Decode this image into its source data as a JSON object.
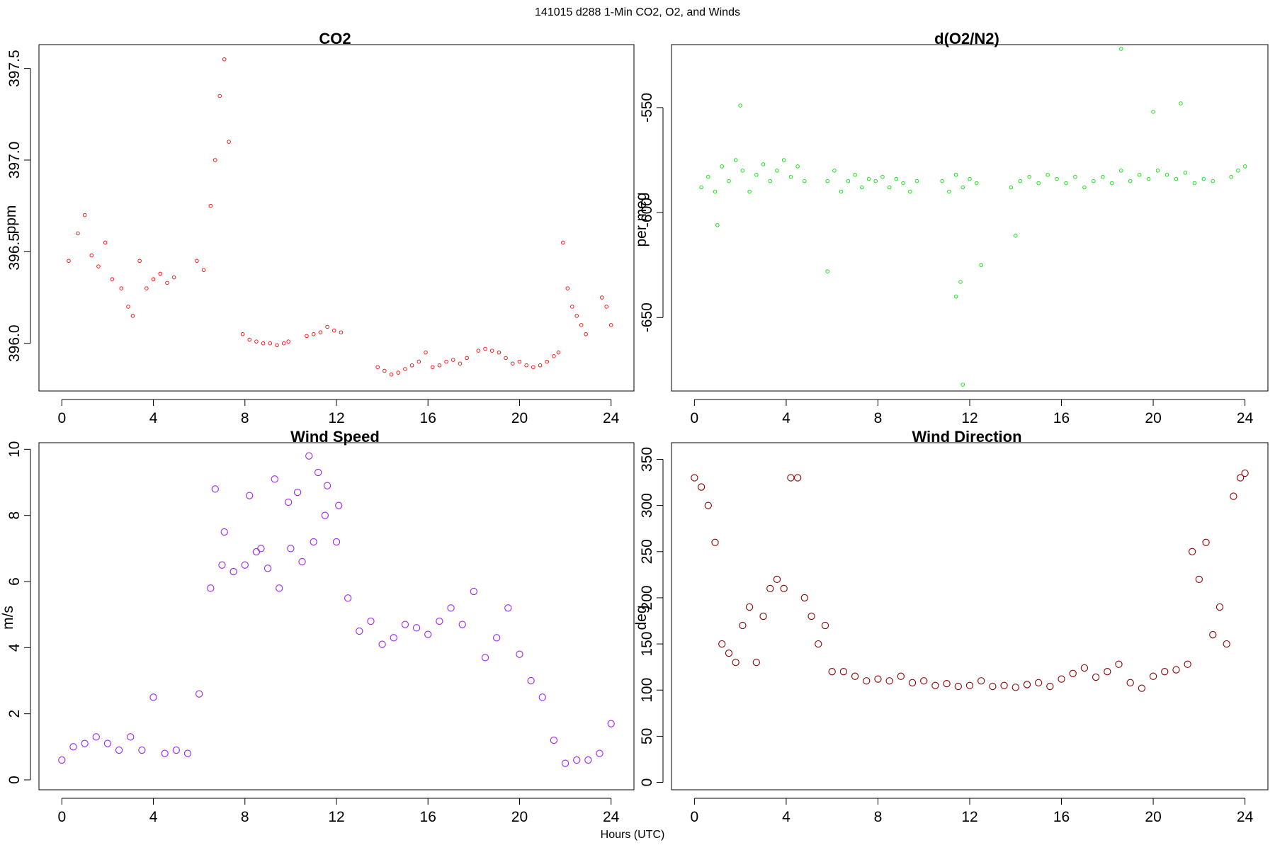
{
  "figure": {
    "title": "141015   d288   1-Min CO2, O2, and Winds",
    "xlabel": "Hours (UTC)"
  },
  "chart_data": [
    {
      "type": "scatter",
      "title": "CO2",
      "xlabel": "",
      "ylabel": "ppm",
      "xlim": [
        -1,
        25
      ],
      "ylim": [
        395.74,
        397.63
      ],
      "xticks": [
        0,
        4,
        8,
        12,
        16,
        20,
        24
      ],
      "yticks": [
        396.0,
        396.5,
        397.0,
        397.5
      ],
      "ytick_labels": [
        "396.0",
        "396.5",
        "397.0",
        "397.5"
      ],
      "color": "#ff0000",
      "marker_size": "small",
      "series": [
        {
          "x": [
            0.3,
            0.7,
            1.0,
            1.3,
            1.6,
            1.9,
            2.2,
            2.6,
            2.9,
            3.1,
            3.4,
            3.7,
            4.0,
            4.3,
            4.6,
            4.9
          ],
          "y": [
            396.45,
            396.6,
            396.7,
            396.48,
            396.42,
            396.55,
            396.35,
            396.3,
            396.2,
            396.15,
            396.45,
            396.3,
            396.35,
            396.38,
            396.33,
            396.36
          ]
        },
        {
          "x": [
            5.9,
            6.2,
            6.5,
            6.7,
            6.9,
            7.1,
            7.3
          ],
          "y": [
            396.45,
            396.4,
            396.75,
            397.0,
            397.35,
            397.55,
            397.1
          ]
        },
        {
          "x": [
            7.9,
            8.2,
            8.5,
            8.8,
            9.1,
            9.4,
            9.7,
            9.9
          ],
          "y": [
            396.05,
            396.02,
            396.01,
            396.0,
            396.0,
            395.99,
            396.0,
            396.01
          ]
        },
        {
          "x": [
            10.7,
            11.0,
            11.3,
            11.6,
            11.9,
            12.2
          ],
          "y": [
            396.04,
            396.05,
            396.06,
            396.09,
            396.07,
            396.06
          ]
        },
        {
          "x": [
            13.8,
            14.1,
            14.4,
            14.7,
            15.0,
            15.3,
            15.6,
            15.9,
            16.2,
            16.5,
            16.8,
            17.1,
            17.4,
            17.7
          ],
          "y": [
            395.87,
            395.85,
            395.83,
            395.84,
            395.86,
            395.88,
            395.9,
            395.95,
            395.87,
            395.88,
            395.9,
            395.91,
            395.89,
            395.92
          ]
        },
        {
          "x": [
            18.2,
            18.5,
            18.8,
            19.1,
            19.4,
            19.7,
            20.0,
            20.3,
            20.6,
            20.9,
            21.2,
            21.5,
            21.7
          ],
          "y": [
            395.96,
            395.97,
            395.96,
            395.95,
            395.92,
            395.89,
            395.9,
            395.88,
            395.87,
            395.88,
            395.9,
            395.93,
            395.95
          ]
        },
        {
          "x": [
            21.9,
            22.1,
            22.3,
            22.5,
            22.7,
            22.9,
            23.6,
            23.8,
            24.0
          ],
          "y": [
            396.55,
            396.3,
            396.2,
            396.15,
            396.1,
            396.05,
            396.25,
            396.2,
            396.1
          ]
        }
      ]
    },
    {
      "type": "scatter",
      "title": "d(O2/N2)",
      "xlabel": "",
      "ylabel": "per meg",
      "xlim": [
        -1,
        25
      ],
      "ylim": [
        -685,
        -520
      ],
      "xticks": [
        0,
        4,
        8,
        12,
        16,
        20,
        24
      ],
      "yticks": [
        -550,
        -600,
        -650
      ],
      "ytick_labels": [
        "-550",
        "-600",
        "-650"
      ],
      "color": "#00e000",
      "marker_size": "small",
      "series": [
        {
          "x": [
            0.3,
            0.6,
            0.9,
            1.2,
            1.5,
            1.8,
            2.1,
            2.4,
            2.7,
            3.0,
            3.3,
            3.6,
            3.9,
            4.2,
            4.5,
            4.8
          ],
          "y": [
            -588,
            -583,
            -590,
            -578,
            -585,
            -575,
            -580,
            -590,
            -582,
            -577,
            -585,
            -580,
            -575,
            -583,
            -578,
            -585
          ]
        },
        {
          "x": [
            5.8,
            6.1,
            6.4,
            6.7,
            7.0,
            7.3,
            7.6
          ],
          "y": [
            -585,
            -580,
            -590,
            -585,
            -582,
            -588,
            -584
          ]
        },
        {
          "x": [
            7.9,
            8.2,
            8.5,
            8.8,
            9.1,
            9.4,
            9.7
          ],
          "y": [
            -585,
            -583,
            -588,
            -584,
            -586,
            -590,
            -585
          ]
        },
        {
          "x": [
            10.8,
            11.1,
            11.4,
            11.7,
            12.0,
            12.3
          ],
          "y": [
            -585,
            -590,
            -582,
            -588,
            -584,
            -586
          ]
        },
        {
          "x": [
            13.8,
            14.2,
            14.6,
            15.0,
            15.4,
            15.8,
            16.2,
            16.6,
            17.0,
            17.4
          ],
          "y": [
            -588,
            -585,
            -583,
            -586,
            -582,
            -584,
            -586,
            -583,
            -588,
            -585
          ]
        },
        {
          "x": [
            17.8,
            18.2,
            18.6,
            19.0,
            19.4,
            19.8,
            20.2,
            20.6,
            21.0,
            21.4,
            21.8,
            22.2,
            22.6
          ],
          "y": [
            -583,
            -586,
            -580,
            -585,
            -582,
            -584,
            -580,
            -582,
            -584,
            -581,
            -586,
            -584,
            -585
          ]
        },
        {
          "x": [
            23.4,
            23.7,
            24.0
          ],
          "y": [
            -583,
            -580,
            -578
          ]
        }
      ],
      "outliers": {
        "x": [
          1.0,
          2.0,
          5.8,
          11.4,
          11.6,
          11.7,
          12.5,
          14.0,
          18.6,
          20.0,
          21.2
        ],
        "y": [
          -606,
          -549,
          -628,
          -640,
          -633,
          -682,
          -625,
          -611,
          -522,
          -552,
          -548
        ]
      }
    },
    {
      "type": "scatter",
      "title": "Wind Speed",
      "xlabel": "",
      "ylabel": "m/s",
      "xlim": [
        -1,
        25
      ],
      "ylim": [
        -0.3,
        10.2
      ],
      "xticks": [
        0,
        4,
        8,
        12,
        16,
        20,
        24
      ],
      "yticks": [
        0,
        2,
        4,
        6,
        8,
        10
      ],
      "ytick_labels": [
        "0",
        "2",
        "4",
        "6",
        "8",
        "10"
      ],
      "color": "#a020f0",
      "marker_size": "large",
      "series": [
        {
          "x": [
            0.0,
            0.5,
            1.0,
            1.5,
            2.0,
            2.5,
            3.0,
            3.5,
            4.0,
            4.5,
            5.0,
            5.5,
            6.0,
            6.5,
            7.0,
            7.5,
            8.0,
            8.5,
            9.0,
            9.5,
            10.0,
            10.5,
            11.0,
            11.5,
            12.0,
            12.5,
            13.0,
            13.5,
            14.0,
            14.5,
            15.0,
            15.5,
            16.0,
            16.5,
            17.0,
            17.5,
            18.0,
            18.5,
            19.0,
            19.5,
            20.0,
            20.5,
            21.0,
            21.5,
            22.0,
            22.5,
            23.0,
            23.5,
            24.0
          ],
          "y": [
            0.6,
            1.0,
            1.1,
            1.3,
            1.1,
            0.9,
            1.3,
            0.9,
            2.5,
            0.8,
            0.9,
            0.8,
            2.6,
            5.8,
            6.5,
            6.3,
            6.5,
            6.9,
            6.4,
            5.8,
            7.0,
            6.6,
            7.2,
            8.0,
            7.2,
            5.5,
            4.5,
            4.8,
            4.1,
            4.3,
            4.7,
            4.6,
            4.4,
            4.8,
            5.2,
            4.7,
            5.7,
            3.7,
            4.3,
            5.2,
            3.8,
            3.0,
            2.5,
            1.2,
            0.5,
            0.6,
            0.6,
            0.8,
            1.7
          ]
        },
        {
          "x": [
            6.7,
            7.1,
            8.2,
            8.7,
            9.3,
            9.9,
            10.3,
            10.8,
            11.2,
            11.6,
            12.1
          ],
          "y": [
            8.8,
            7.5,
            8.6,
            7.0,
            9.1,
            8.4,
            8.7,
            9.8,
            9.3,
            8.9,
            8.3
          ]
        }
      ]
    },
    {
      "type": "scatter",
      "title": "Wind Direction",
      "xlabel": "",
      "ylabel": "deg",
      "xlim": [
        -1,
        25
      ],
      "ylim": [
        -8,
        368
      ],
      "xticks": [
        0,
        4,
        8,
        12,
        16,
        20,
        24
      ],
      "yticks": [
        0,
        50,
        100,
        150,
        200,
        250,
        300,
        350
      ],
      "ytick_labels": [
        "0",
        "50",
        "100",
        "150",
        "200",
        "250",
        "300",
        "350"
      ],
      "color": "#8b0000",
      "marker_size": "large",
      "series": [
        {
          "x": [
            0.0,
            0.3,
            0.6,
            0.9,
            1.2,
            1.5,
            1.8,
            2.1,
            2.4,
            2.7,
            3.0,
            3.3,
            3.6,
            3.9,
            4.2,
            4.5,
            4.8,
            5.1,
            5.4,
            5.7,
            6.0
          ],
          "y": [
            330,
            320,
            300,
            260,
            150,
            140,
            130,
            170,
            190,
            130,
            180,
            210,
            220,
            210,
            330,
            330,
            200,
            180,
            150,
            170,
            120
          ]
        },
        {
          "x": [
            6.5,
            7.0,
            7.5,
            8.0,
            8.5,
            9.0,
            9.5,
            10.0,
            10.5,
            11.0,
            11.5,
            12.0,
            12.5,
            13.0,
            13.5,
            14.0,
            14.5,
            15.0,
            15.5,
            16.0,
            16.5,
            17.0,
            17.5,
            18.0,
            18.5,
            19.0,
            19.5,
            20.0,
            20.5,
            21.0,
            21.5
          ],
          "y": [
            120,
            115,
            110,
            112,
            110,
            115,
            108,
            110,
            105,
            107,
            104,
            105,
            110,
            104,
            105,
            103,
            106,
            108,
            104,
            112,
            118,
            124,
            114,
            120,
            128,
            108,
            102,
            115,
            120,
            122,
            128
          ]
        },
        {
          "x": [
            21.7,
            22.0,
            22.3,
            22.6,
            22.9,
            23.2,
            23.5,
            23.8,
            24.0
          ],
          "y": [
            250,
            220,
            260,
            160,
            190,
            150,
            310,
            330,
            335
          ]
        }
      ]
    }
  ]
}
